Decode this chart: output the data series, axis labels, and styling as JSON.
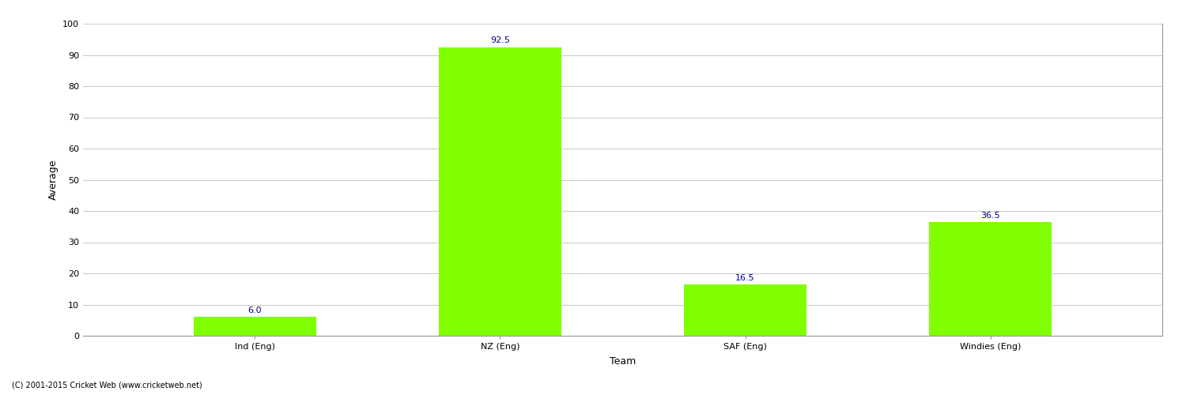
{
  "categories": [
    "Ind (Eng)",
    "NZ (Eng)",
    "SAF (Eng)",
    "Windies (Eng)"
  ],
  "values": [
    6.0,
    92.5,
    16.5,
    36.5
  ],
  "bar_color": "#7fff00",
  "label_color": "#00008b",
  "ylabel": "Average",
  "xlabel": "Team",
  "ylim": [
    0,
    100
  ],
  "yticks": [
    0,
    10,
    20,
    30,
    40,
    50,
    60,
    70,
    80,
    90,
    100
  ],
  "label_fontsize": 8,
  "axis_fontsize": 9,
  "tick_fontsize": 8,
  "footer": "(C) 2001-2015 Cricket Web (www.cricketweb.net)",
  "background_color": "#ffffff",
  "grid_color": "#cccccc",
  "bar_width": 0.5
}
